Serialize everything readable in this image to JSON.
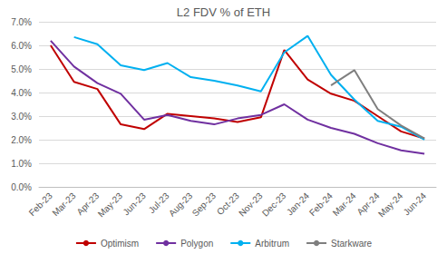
{
  "chart_data": {
    "type": "line",
    "title": "L2 FDV % of ETH",
    "categories": [
      "Feb-23",
      "Mar-23",
      "Apr-23",
      "May-23",
      "Jun-23",
      "Jul-23",
      "Aug-23",
      "Sep-23",
      "Oct-23",
      "Nov-23",
      "Dec-23",
      "Jan-24",
      "Feb-24",
      "Mar-24",
      "Apr-24",
      "May-24",
      "Jun-24"
    ],
    "series": [
      {
        "name": "Optimism",
        "color": "#c00000",
        "values": [
          6.0,
          4.45,
          4.15,
          2.65,
          2.45,
          3.1,
          3.0,
          2.9,
          2.75,
          2.95,
          5.8,
          4.55,
          3.95,
          3.65,
          3.0,
          2.35,
          2.05
        ]
      },
      {
        "name": "Polygon",
        "color": "#7030a0",
        "values": [
          6.2,
          5.1,
          4.4,
          3.95,
          2.85,
          3.05,
          2.8,
          2.65,
          2.9,
          3.05,
          3.5,
          2.85,
          2.5,
          2.25,
          1.85,
          1.55,
          1.4
        ]
      },
      {
        "name": "Arbitrum",
        "color": "#00b0f0",
        "values": [
          null,
          6.35,
          6.05,
          5.15,
          4.95,
          5.25,
          4.65,
          4.5,
          4.3,
          4.05,
          5.7,
          6.4,
          4.75,
          3.7,
          2.8,
          2.55,
          2.0
        ]
      },
      {
        "name": "Starkware",
        "color": "#7f7f7f",
        "values": [
          null,
          null,
          null,
          null,
          null,
          null,
          null,
          null,
          null,
          null,
          null,
          null,
          4.3,
          4.95,
          3.3,
          2.6,
          2.05
        ]
      }
    ],
    "ylim": [
      0,
      7
    ],
    "yticks": [
      {
        "value": 0,
        "label": "0.0%"
      },
      {
        "value": 1,
        "label": "1.0%"
      },
      {
        "value": 2,
        "label": "2.0%"
      },
      {
        "value": 3,
        "label": "3.0%"
      },
      {
        "value": 4,
        "label": "4.0%"
      },
      {
        "value": 5,
        "label": "5.0%"
      },
      {
        "value": 6,
        "label": "6.0%"
      },
      {
        "value": 7,
        "label": "7.0%"
      }
    ],
    "grid": true,
    "legend": "bottom",
    "marker": "none",
    "line_style": "solid"
  }
}
